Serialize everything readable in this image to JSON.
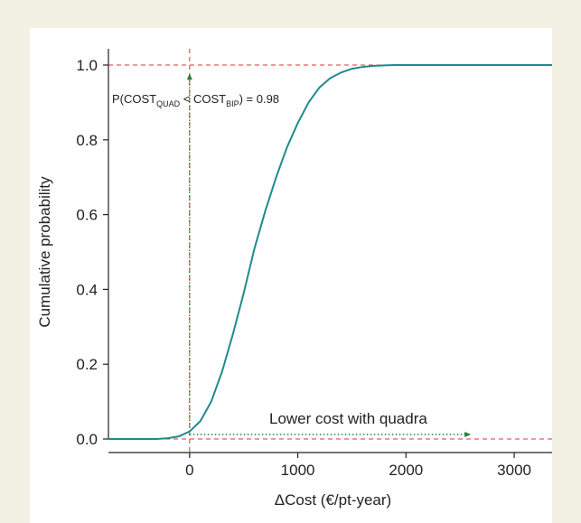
{
  "colors": {
    "background": "#f2f1e3",
    "panel": "#ffffff",
    "curve": "#1f8a8c",
    "reference_line": "#e0303a",
    "annotation": "#2f7a3a",
    "axis": "#222222"
  },
  "chart_data": {
    "type": "line",
    "xlabel": "ΔCost (€/pt-year)",
    "ylabel": "Cumulative probability",
    "xlim": [
      -750,
      3400
    ],
    "ylim": [
      0,
      1.0
    ],
    "xticks": [
      0,
      1000,
      2000,
      3000
    ],
    "xtick_labels": [
      "0",
      "1000",
      "2000",
      "3000"
    ],
    "yticks": [
      0.0,
      0.2,
      0.4,
      0.6,
      0.8,
      1.0
    ],
    "ytick_labels": [
      "0.0",
      "0.2",
      "0.4",
      "0.6",
      "0.8",
      "1.0"
    ],
    "grid": false,
    "series": [
      {
        "x": [
          -750,
          -500,
          -300,
          -200,
          -100,
          0,
          100,
          200,
          300,
          400,
          500,
          600,
          700,
          800,
          900,
          1000,
          1100,
          1200,
          1300,
          1400,
          1500,
          1600,
          1700,
          1800,
          1900,
          2000,
          2500,
          3000,
          3400
        ],
        "y": [
          0.0,
          0.0,
          0.0,
          0.002,
          0.007,
          0.02,
          0.048,
          0.1,
          0.18,
          0.28,
          0.39,
          0.51,
          0.61,
          0.7,
          0.78,
          0.845,
          0.9,
          0.94,
          0.965,
          0.98,
          0.99,
          0.995,
          0.998,
          0.999,
          1.0,
          1.0,
          1.0,
          1.0,
          1.0
        ]
      }
    ],
    "reference_lines": {
      "x0": 0,
      "y_top": 1.0,
      "y_bottom": 0.0
    },
    "annotations": {
      "prob_prefix": "P(COST",
      "prob_sub1": "QUAD",
      "prob_middle": " < COST",
      "prob_sub2": "BIP",
      "prob_suffix": ") = 0.98",
      "lower_cost_label": "Lower cost with quadra",
      "arrow_up_y": 0.98,
      "arrow_right_to_x": 2600
    }
  }
}
